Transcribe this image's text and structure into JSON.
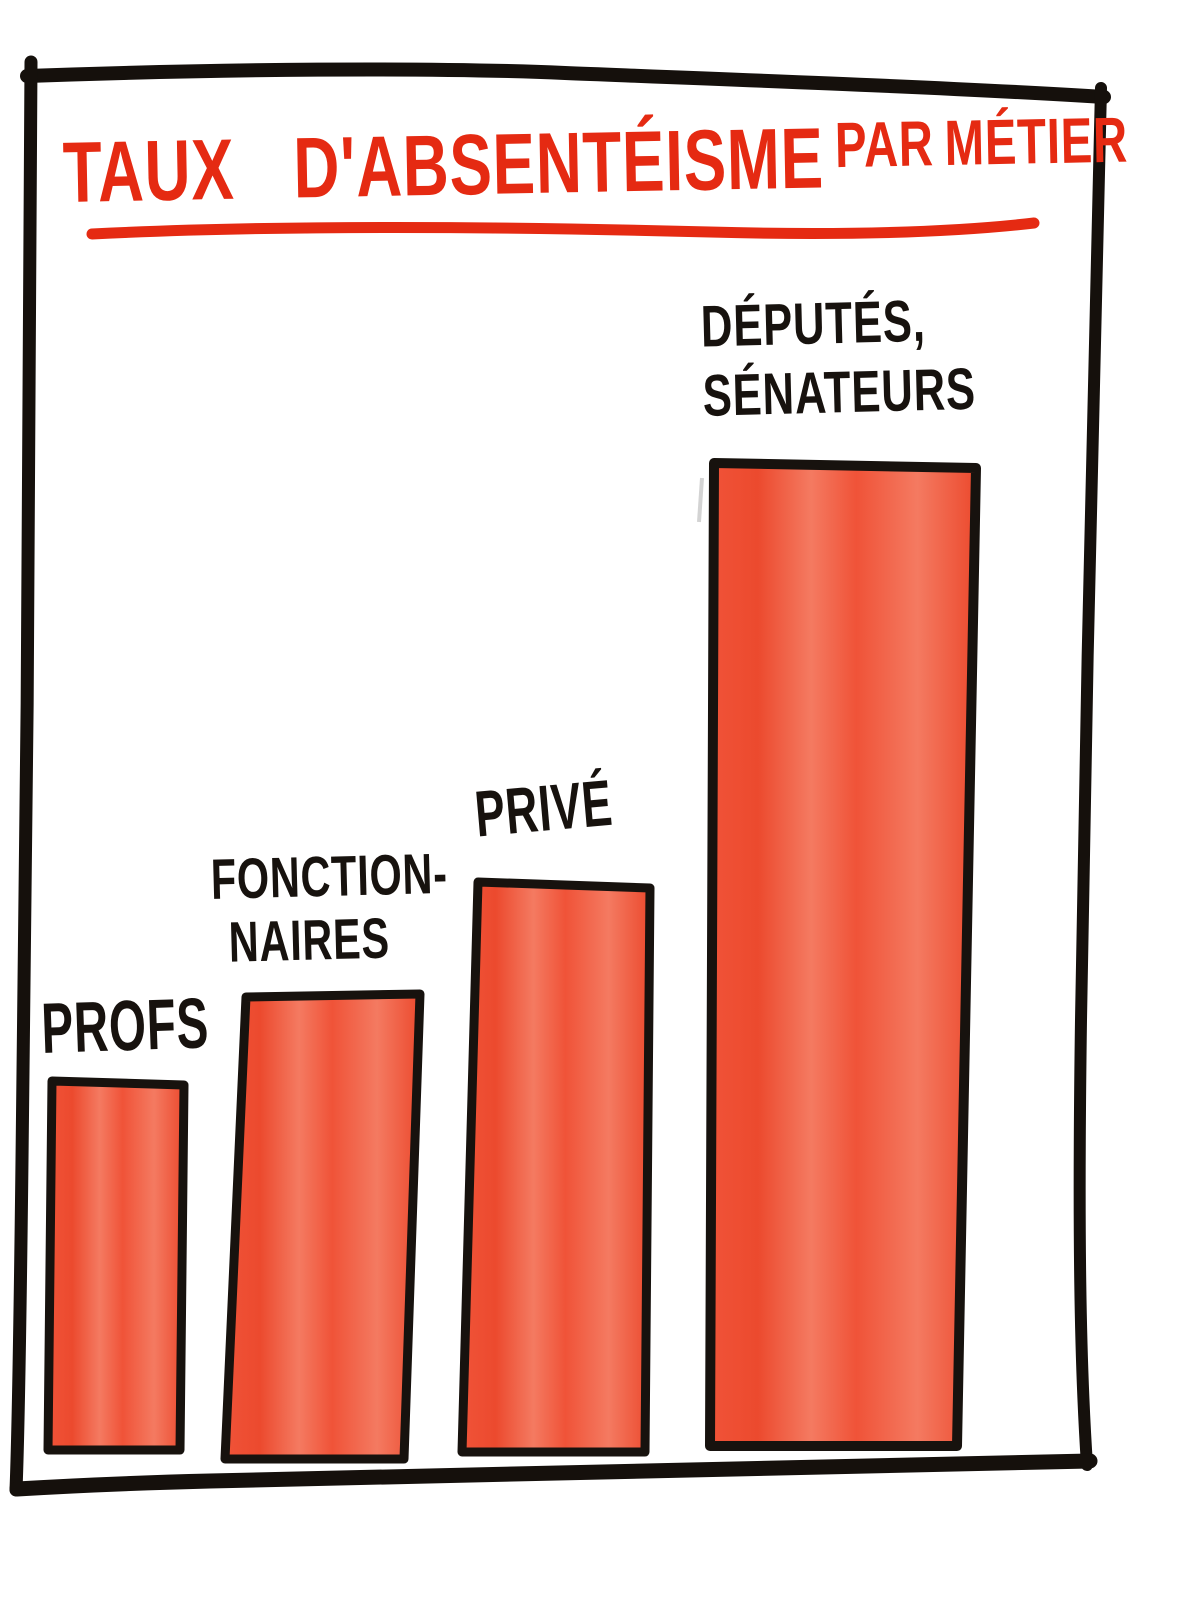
{
  "title": {
    "main": "TAUX D'ABSENTÉISME",
    "suffix": "PAR MÉTIER"
  },
  "bars": [
    {
      "name": "profs",
      "label_lines": [
        "PROFS"
      ]
    },
    {
      "name": "fonctionnaires",
      "label_lines": [
        "FONCTION-",
        "NAIRES"
      ]
    },
    {
      "name": "prive",
      "label_lines": [
        "PRIVÉ"
      ]
    },
    {
      "name": "deputes-senateurs",
      "label_lines": [
        "DÉPUTÉS,",
        "SÉNATEURS"
      ]
    }
  ],
  "colors": {
    "background": "#ffffff",
    "title_red": "#e52a12",
    "ink_black": "#17120e",
    "bar_fill": "#f05338",
    "bar_fill_light": "#f47a61",
    "bar_fill_dark": "#ec4a2e",
    "bar_stroke": "#17120e",
    "frame_stroke": "#15100c",
    "pencil_gray": "#c9c9c9"
  },
  "chart_data": {
    "type": "bar",
    "title": "TAUX D'ABSENTÉISME PAR MÉTIER",
    "categories": [
      "PROFS",
      "FONCTION-NAIRES",
      "PRIVÉ",
      "DÉPUTÉS, SÉNATEURS"
    ],
    "values_relative": [
      0.375,
      0.47,
      0.58,
      1.0
    ],
    "value_axis": "none shown (relative bar heights only)",
    "axes_shown": false,
    "gridlines": false,
    "legend": "none",
    "bar_color": "#f05338",
    "style": "hand-drawn marker cartoon inside a black frame"
  }
}
